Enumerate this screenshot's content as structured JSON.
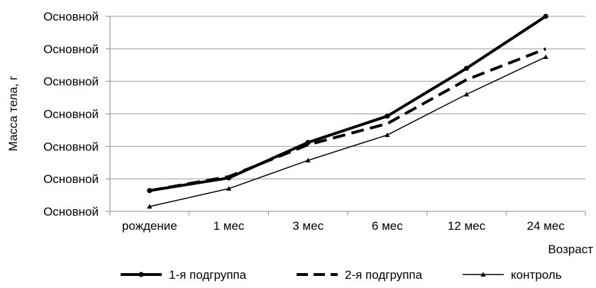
{
  "chart_data": {
    "type": "line",
    "categories": [
      "рождение",
      "1 мес",
      "3 мес",
      "6 мес",
      "12 мес",
      "24 мес"
    ],
    "y_tick_labels": [
      "Основной",
      "Основной",
      "Основной",
      "Основной",
      "Основной",
      "Основной",
      "Основной"
    ],
    "ylim": [
      0,
      6
    ],
    "ylabel": "Масса тела, г",
    "xlabel": "Возраст",
    "grid": true,
    "legend_position": "bottom",
    "series": [
      {
        "name": "1-я подгруппа",
        "style": "thick-solid",
        "marker": "circle",
        "values": [
          0.64,
          1.03,
          2.12,
          2.93,
          4.4,
          6.0
        ]
      },
      {
        "name": "2-я подгруппа",
        "style": "dashed",
        "marker": "none",
        "values": [
          0.64,
          1.07,
          2.05,
          2.7,
          4.05,
          5.0
        ]
      },
      {
        "name": "контроль",
        "style": "thin-solid",
        "marker": "triangle",
        "values": [
          0.15,
          0.7,
          1.57,
          2.35,
          3.6,
          4.75
        ]
      }
    ]
  }
}
